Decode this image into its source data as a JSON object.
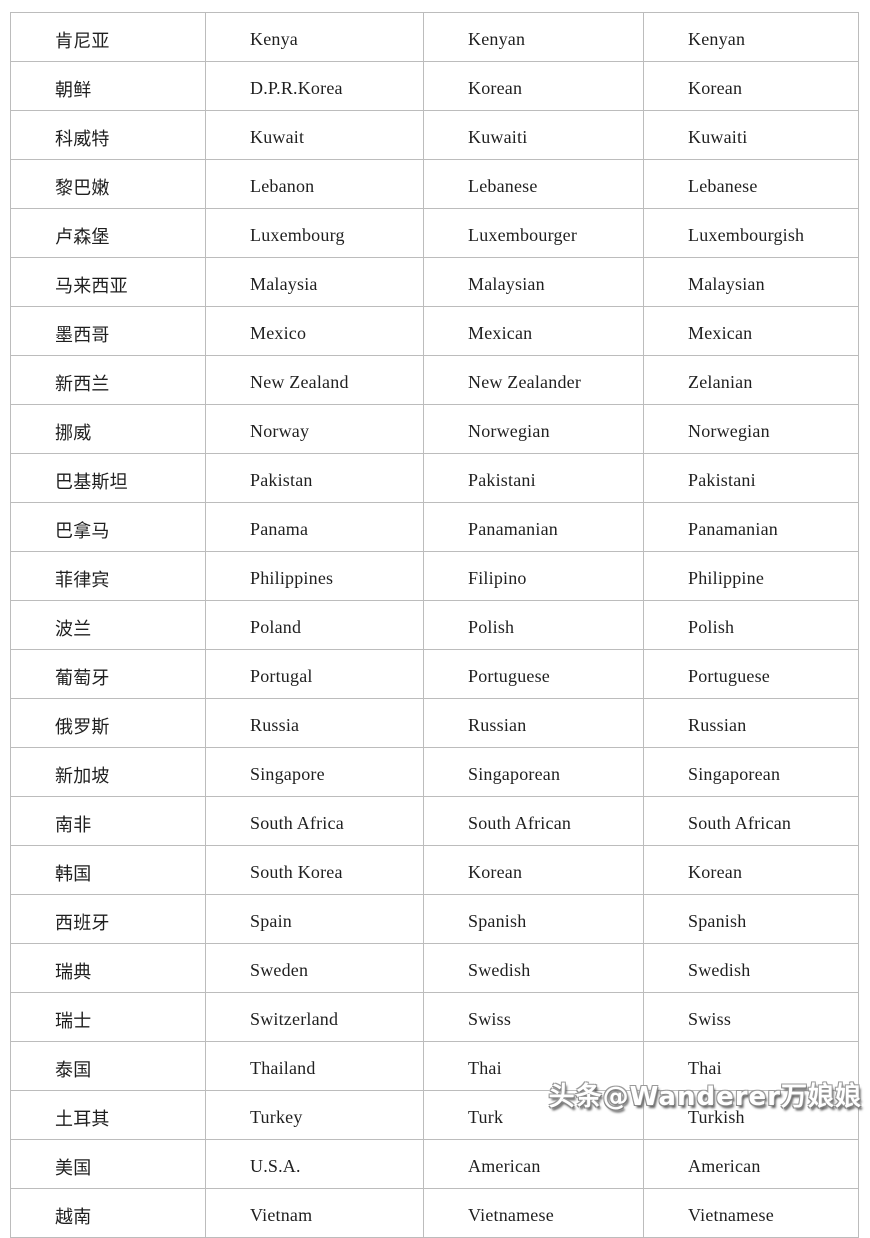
{
  "table": {
    "rows": [
      [
        "肯尼亚",
        "Kenya",
        "Kenyan",
        "Kenyan"
      ],
      [
        "朝鲜",
        "D.P.R.Korea",
        "Korean",
        "Korean"
      ],
      [
        "科威特",
        "Kuwait",
        "Kuwaiti",
        "Kuwaiti"
      ],
      [
        "黎巴嫩",
        "Lebanon",
        "Lebanese",
        "Lebanese"
      ],
      [
        "卢森堡",
        "Luxembourg",
        "Luxembourger",
        "Luxembourgish"
      ],
      [
        "马来西亚",
        "Malaysia",
        "Malaysian",
        "Malaysian"
      ],
      [
        "墨西哥",
        "Mexico",
        "Mexican",
        "Mexican"
      ],
      [
        "新西兰",
        "New Zealand",
        "New Zealander",
        "Zelanian"
      ],
      [
        "挪威",
        "Norway",
        "Norwegian",
        "Norwegian"
      ],
      [
        "巴基斯坦",
        "Pakistan",
        "Pakistani",
        "Pakistani"
      ],
      [
        "巴拿马",
        "Panama",
        "Panamanian",
        "Panamanian"
      ],
      [
        "菲律宾",
        "Philippines",
        "Filipino",
        "Philippine"
      ],
      [
        "波兰",
        "Poland",
        "Polish",
        "Polish"
      ],
      [
        "葡萄牙",
        "Portugal",
        "Portuguese",
        "Portuguese"
      ],
      [
        "俄罗斯",
        "Russia",
        "Russian",
        "Russian"
      ],
      [
        "新加坡",
        "Singapore",
        "Singaporean",
        "Singaporean"
      ],
      [
        "南非",
        "South Africa",
        "South African",
        "South African"
      ],
      [
        "韩国",
        "South Korea",
        "Korean",
        "Korean"
      ],
      [
        "西班牙",
        "Spain",
        "Spanish",
        "Spanish"
      ],
      [
        "瑞典",
        "Sweden",
        "Swedish",
        "Swedish"
      ],
      [
        "瑞士",
        "Switzerland",
        "Swiss",
        "Swiss"
      ],
      [
        "泰国",
        "Thailand",
        "Thai",
        "Thai"
      ],
      [
        "土耳其",
        "Turkey",
        "Turk",
        "Turkish"
      ],
      [
        "美国",
        "U.S.A.",
        "American",
        "American"
      ],
      [
        "越南",
        "Vietnam",
        "Vietnamese",
        "Vietnamese"
      ]
    ]
  },
  "watermark": {
    "text": "头条@Wanderer万娘娘"
  },
  "colors": {
    "border": "#bcbcbc",
    "text": "#1f1f1f",
    "background": "#ffffff",
    "watermark_fill": "#ffffff",
    "watermark_outline": "#8a8a8a"
  }
}
